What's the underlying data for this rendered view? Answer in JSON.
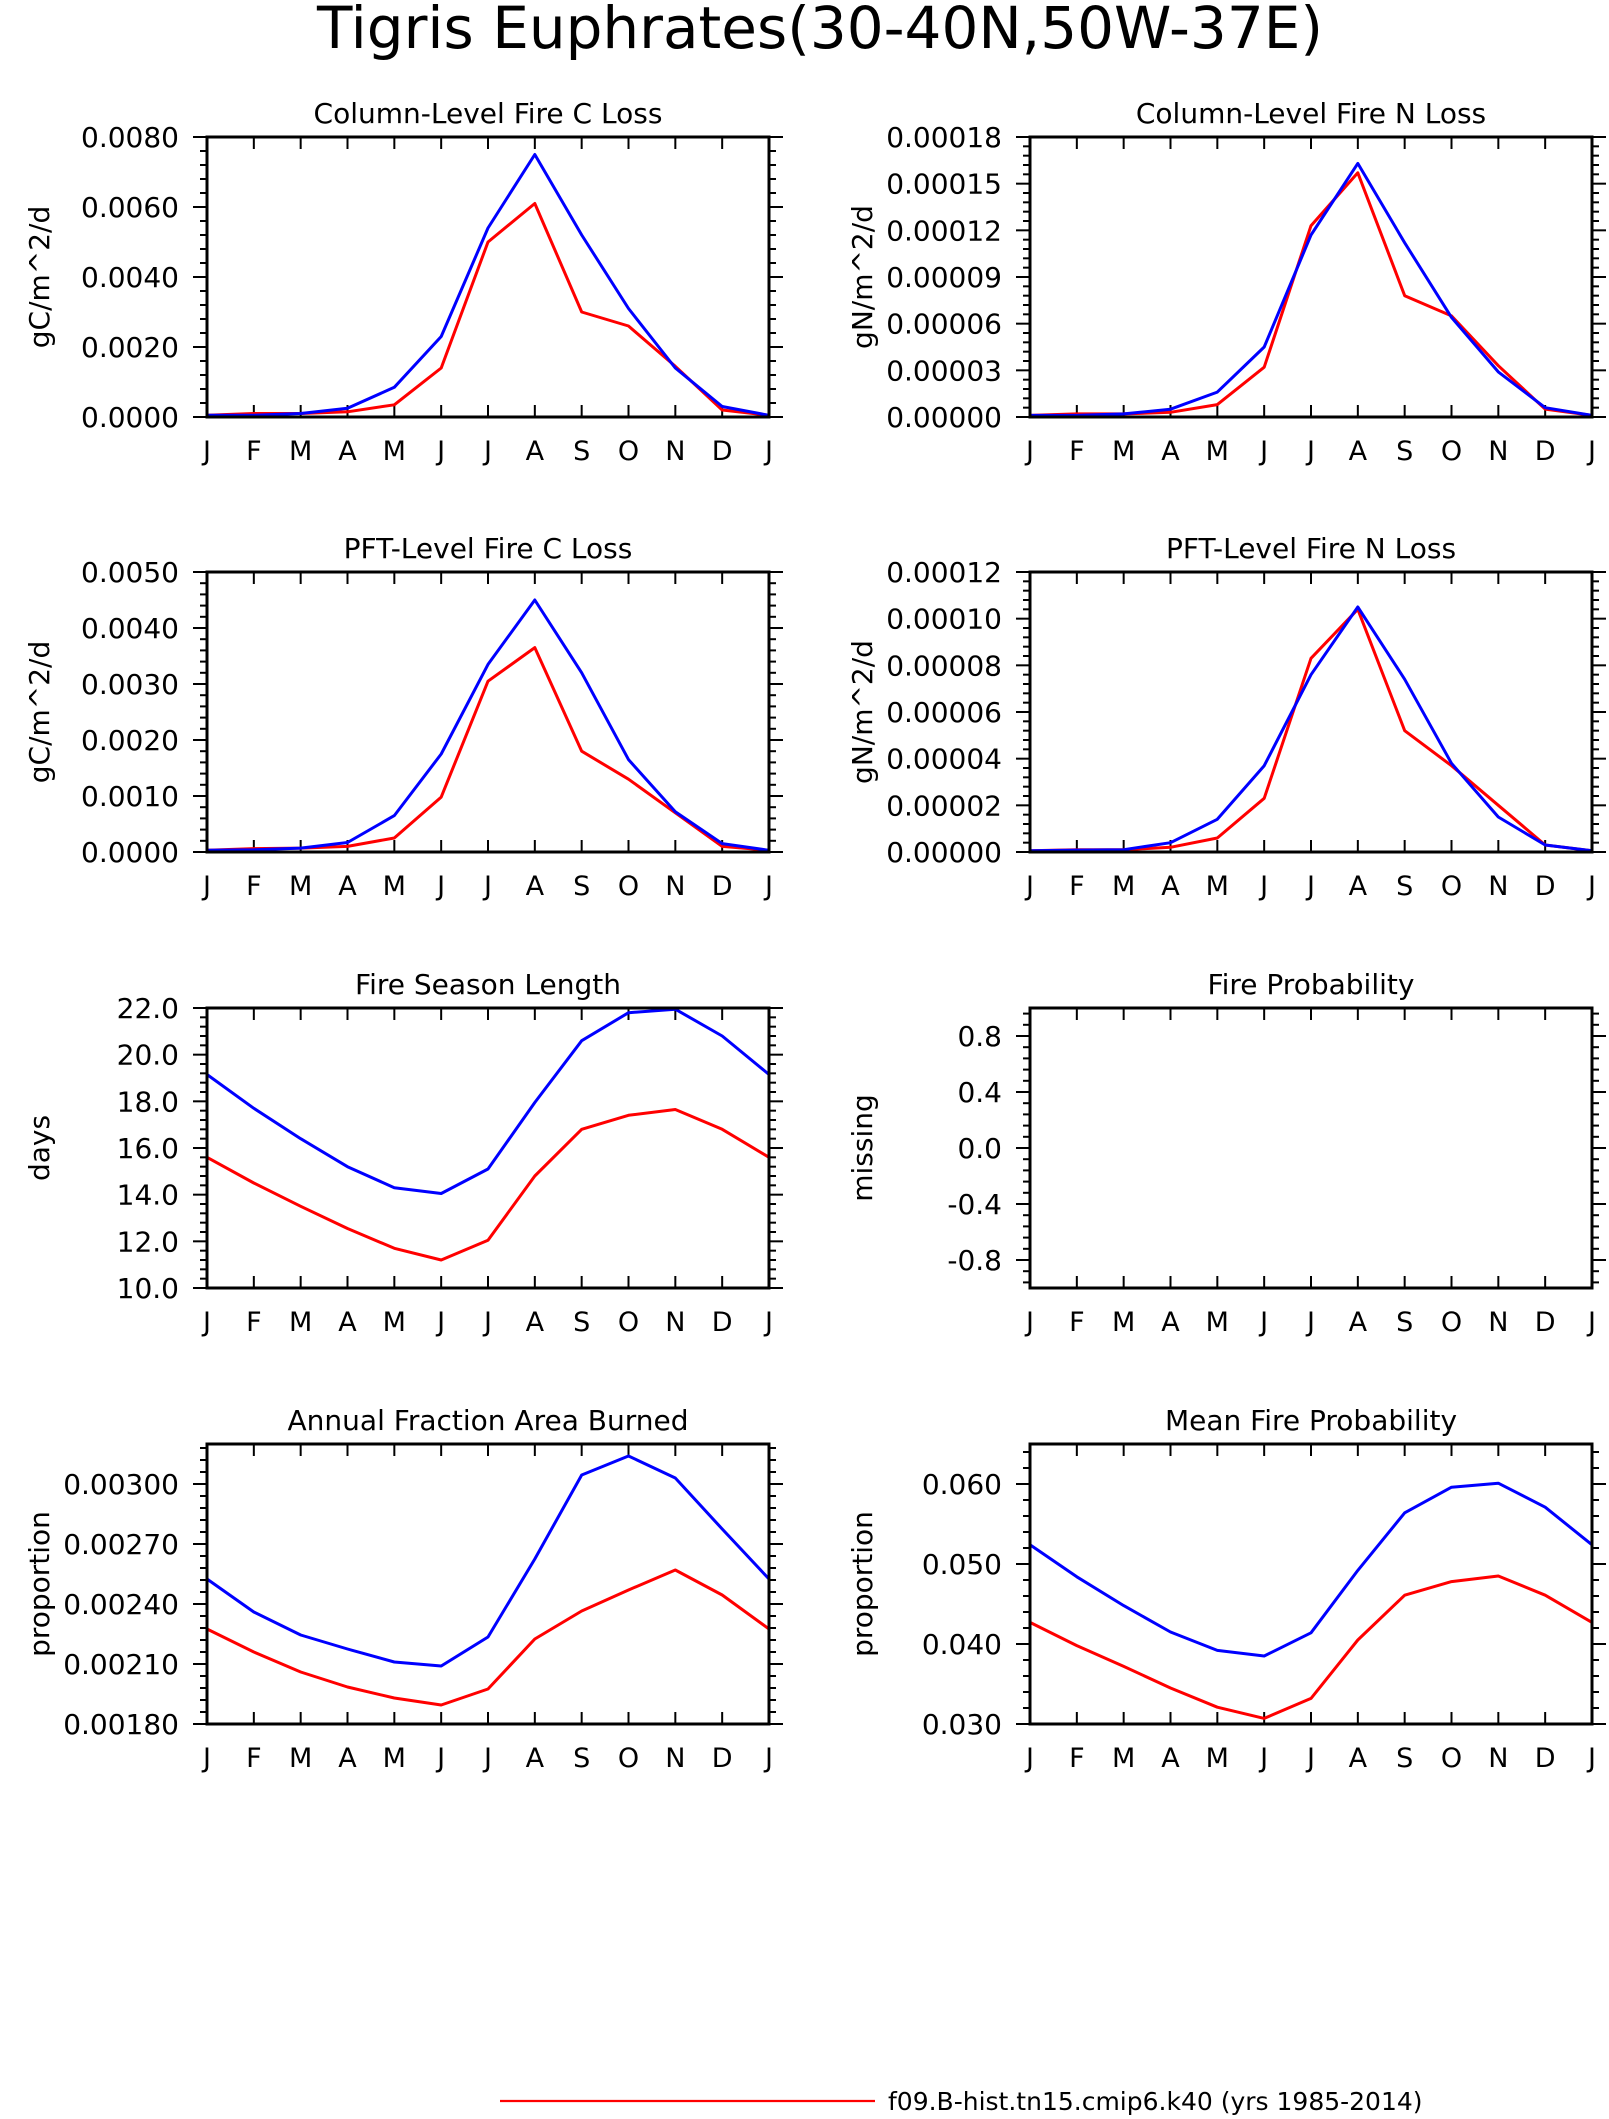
{
  "figure": {
    "title": "Tigris Euphrates(30-40N,50W-37E)",
    "legend": [
      {
        "label": "f09.B-hist.tn15.cmip6.k40 (yrs 1985-2014)",
        "color": "#ff0000"
      }
    ]
  },
  "colors": {
    "case1": "#ff0000",
    "case2": "#0000ff",
    "axis": "#000000"
  },
  "chart_data": [
    {
      "type": "line",
      "title": "Column-Level Fire C Loss",
      "ylabel": "gC/m^2/d",
      "categories": [
        "J",
        "F",
        "M",
        "A",
        "M",
        "J",
        "J",
        "A",
        "S",
        "O",
        "N",
        "D",
        "J"
      ],
      "ylim": [
        0,
        0.008
      ],
      "yticks": [
        "0.0000",
        "0.0020",
        "0.0040",
        "0.0060",
        "0.0080"
      ],
      "series": [
        {
          "color": "#ff0000",
          "values": [
            5e-05,
            0.0001,
            0.0001,
            0.00015,
            0.00035,
            0.0014,
            0.005,
            0.0061,
            0.003,
            0.0026,
            0.00145,
            0.0002,
            5e-05
          ]
        },
        {
          "color": "#0000ff",
          "values": [
            5e-05,
            5e-05,
            0.0001,
            0.00025,
            0.00085,
            0.0023,
            0.0054,
            0.0075,
            0.0052,
            0.0031,
            0.0014,
            0.0003,
            5e-05
          ]
        }
      ]
    },
    {
      "type": "line",
      "title": "Column-Level Fire N Loss",
      "ylabel": "gN/m^2/d",
      "categories": [
        "J",
        "F",
        "M",
        "A",
        "M",
        "J",
        "J",
        "A",
        "S",
        "O",
        "N",
        "D",
        "J"
      ],
      "ylim": [
        0,
        0.00018
      ],
      "yticks": [
        "0.00000",
        "0.00003",
        "0.00006",
        "0.00009",
        "0.00012",
        "0.00015",
        "0.00018"
      ],
      "series": [
        {
          "color": "#ff0000",
          "values": [
            1e-06,
            2e-06,
            2e-06,
            3e-06,
            8e-06,
            3.2e-05,
            0.000123,
            0.000157,
            7.8e-05,
            6.5e-05,
            3.3e-05,
            5e-06,
            1e-06
          ]
        },
        {
          "color": "#0000ff",
          "values": [
            1e-06,
            1e-06,
            2e-06,
            5e-06,
            1.6e-05,
            4.5e-05,
            0.000117,
            0.000163,
            0.000112,
            6.4e-05,
            2.9e-05,
            6e-06,
            1e-06
          ]
        }
      ]
    },
    {
      "type": "line",
      "title": "PFT-Level Fire C Loss",
      "ylabel": "gC/m^2/d",
      "categories": [
        "J",
        "F",
        "M",
        "A",
        "M",
        "J",
        "J",
        "A",
        "S",
        "O",
        "N",
        "D",
        "J"
      ],
      "ylim": [
        0,
        0.005
      ],
      "yticks": [
        "0.0000",
        "0.0010",
        "0.0020",
        "0.0030",
        "0.0040",
        "0.0050"
      ],
      "series": [
        {
          "color": "#ff0000",
          "values": [
            3e-05,
            6e-05,
            7e-05,
            0.0001,
            0.00025,
            0.00098,
            0.00305,
            0.00365,
            0.0018,
            0.0013,
            0.0007,
            0.0001,
            3e-05
          ]
        },
        {
          "color": "#0000ff",
          "values": [
            3e-05,
            4e-05,
            7e-05,
            0.00017,
            0.00065,
            0.00175,
            0.00335,
            0.0045,
            0.0032,
            0.00165,
            0.00072,
            0.00015,
            3e-05
          ]
        }
      ]
    },
    {
      "type": "line",
      "title": "PFT-Level Fire N Loss",
      "ylabel": "gN/m^2/d",
      "categories": [
        "J",
        "F",
        "M",
        "A",
        "M",
        "J",
        "J",
        "A",
        "S",
        "O",
        "N",
        "D",
        "J"
      ],
      "ylim": [
        0,
        0.00012
      ],
      "yticks": [
        "0.00000",
        "0.00002",
        "0.00004",
        "0.00006",
        "0.00008",
        "0.00010",
        "0.00012"
      ],
      "series": [
        {
          "color": "#ff0000",
          "values": [
            5e-07,
            1e-06,
            1e-06,
            2e-06,
            6e-06,
            2.3e-05,
            8.3e-05,
            0.000104,
            5.2e-05,
            3.7e-05,
            2e-05,
            3e-06,
            5e-07
          ]
        },
        {
          "color": "#0000ff",
          "values": [
            5e-07,
            8e-07,
            1e-06,
            4e-06,
            1.4e-05,
            3.7e-05,
            7.6e-05,
            0.000105,
            7.4e-05,
            3.8e-05,
            1.5e-05,
            3e-06,
            5e-07
          ]
        }
      ]
    },
    {
      "type": "line",
      "title": "Fire Season Length",
      "ylabel": "days",
      "categories": [
        "J",
        "F",
        "M",
        "A",
        "M",
        "J",
        "J",
        "A",
        "S",
        "O",
        "N",
        "D",
        "J"
      ],
      "ylim": [
        10,
        22
      ],
      "yticks": [
        "10.0",
        "12.0",
        "14.0",
        "16.0",
        "18.0",
        "20.0",
        "22.0"
      ],
      "series": [
        {
          "color": "#ff0000",
          "values": [
            15.6,
            14.5,
            13.5,
            12.55,
            11.7,
            11.2,
            12.05,
            14.8,
            16.8,
            17.4,
            17.65,
            16.8,
            15.6
          ]
        },
        {
          "color": "#0000ff",
          "values": [
            19.15,
            17.7,
            16.4,
            15.2,
            14.3,
            14.05,
            15.1,
            17.95,
            20.6,
            21.8,
            21.95,
            20.8,
            19.15
          ]
        }
      ]
    },
    {
      "type": "line",
      "title": "Fire Probability",
      "ylabel": "missing",
      "categories": [
        "J",
        "F",
        "M",
        "A",
        "M",
        "J",
        "J",
        "A",
        "S",
        "O",
        "N",
        "D",
        "J"
      ],
      "ylim": [
        -1,
        1
      ],
      "yticks": [
        "-0.8",
        "-0.4",
        "0.0",
        "0.4",
        "0.8"
      ],
      "series": []
    },
    {
      "type": "line",
      "title": "Annual Fraction Area Burned",
      "ylabel": "proportion",
      "categories": [
        "J",
        "F",
        "M",
        "A",
        "M",
        "J",
        "J",
        "A",
        "S",
        "O",
        "N",
        "D",
        "J"
      ],
      "ylim": [
        0.0018,
        0.0032
      ],
      "yticks": [
        "0.00180",
        "0.00210",
        "0.00240",
        "0.00270",
        "0.00300"
      ],
      "series": [
        {
          "color": "#ff0000",
          "values": [
            0.002275,
            0.00216,
            0.00206,
            0.001985,
            0.00193,
            0.001895,
            0.001975,
            0.002225,
            0.002365,
            0.00247,
            0.00257,
            0.002445,
            0.002275
          ]
        },
        {
          "color": "#0000ff",
          "values": [
            0.002525,
            0.00236,
            0.002245,
            0.002175,
            0.00211,
            0.00209,
            0.002235,
            0.002625,
            0.003045,
            0.00314,
            0.00303,
            0.002775,
            0.002525
          ]
        }
      ]
    },
    {
      "type": "line",
      "title": "Mean Fire Probability",
      "ylabel": "proportion",
      "categories": [
        "J",
        "F",
        "M",
        "A",
        "M",
        "J",
        "J",
        "A",
        "S",
        "O",
        "N",
        "D",
        "J"
      ],
      "ylim": [
        0.03,
        0.065
      ],
      "yticks": [
        "0.030",
        "0.040",
        "0.050",
        "0.060"
      ],
      "series": [
        {
          "color": "#ff0000",
          "values": [
            0.0427,
            0.0398,
            0.0372,
            0.0345,
            0.0321,
            0.0307,
            0.0332,
            0.0405,
            0.0461,
            0.0478,
            0.0485,
            0.0461,
            0.0427
          ]
        },
        {
          "color": "#0000ff",
          "values": [
            0.0524,
            0.0484,
            0.0448,
            0.0415,
            0.0392,
            0.0385,
            0.0414,
            0.0492,
            0.0564,
            0.0596,
            0.0601,
            0.0571,
            0.0524
          ]
        }
      ]
    }
  ]
}
